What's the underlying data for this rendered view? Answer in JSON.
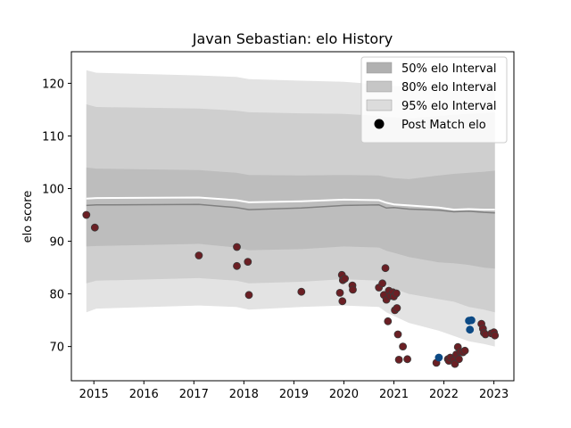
{
  "chart_data": {
    "type": "line",
    "title": "Javan Sebastian: elo History",
    "xlabel": "",
    "ylabel": "elo score",
    "xlim": [
      2014.55,
      2023.4
    ],
    "ylim": [
      63.5,
      126
    ],
    "x_ticks": [
      2015,
      2016,
      2017,
      2018,
      2019,
      2020,
      2021,
      2022,
      2023
    ],
    "y_ticks": [
      70,
      80,
      90,
      100,
      110,
      120
    ],
    "legend_position": "top-right",
    "legend": [
      {
        "label": "50% elo Interval",
        "color": "#b0b0b0",
        "kind": "patch"
      },
      {
        "label": "80% elo Interval",
        "color": "#c6c6c6",
        "kind": "patch"
      },
      {
        "label": "95% elo Interval",
        "color": "#dcdcdc",
        "kind": "patch"
      },
      {
        "label": "Post Match elo",
        "color": "#000000",
        "kind": "marker"
      }
    ],
    "timeline": [
      {
        "x": 2014.85,
        "band95": [
          76.5,
          122.5
        ],
        "band80": [
          82,
          116
        ],
        "band50": [
          89,
          104
        ],
        "mean": 96.8,
        "rating": 98.1
      },
      {
        "x": 2015.05,
        "band95": [
          77.2,
          122.0
        ],
        "band80": [
          82.5,
          115.5
        ],
        "band50": [
          89.1,
          103.8
        ],
        "mean": 96.9,
        "rating": 98.2
      },
      {
        "x": 2017.1,
        "band95": [
          77.8,
          121.5
        ],
        "band80": [
          83.0,
          115.2
        ],
        "band50": [
          89.5,
          103.5
        ],
        "mean": 97.0,
        "rating": 98.3
      },
      {
        "x": 2017.85,
        "band95": [
          77.5,
          121.2
        ],
        "band80": [
          82.5,
          114.8
        ],
        "band50": [
          88.8,
          103.0
        ],
        "mean": 96.4,
        "rating": 97.8
      },
      {
        "x": 2018.1,
        "band95": [
          77.0,
          120.8
        ],
        "band80": [
          82.0,
          114.5
        ],
        "band50": [
          88.3,
          102.6
        ],
        "mean": 96.0,
        "rating": 97.4
      },
      {
        "x": 2019.15,
        "band95": [
          77.5,
          120.5
        ],
        "band80": [
          82.3,
          114.3
        ],
        "band50": [
          88.5,
          102.5
        ],
        "mean": 96.3,
        "rating": 97.6
      },
      {
        "x": 2020.0,
        "band95": [
          77.8,
          120.3
        ],
        "band80": [
          82.8,
          114.2
        ],
        "band50": [
          89.0,
          102.6
        ],
        "mean": 96.8,
        "rating": 97.9
      },
      {
        "x": 2020.7,
        "band95": [
          77.5,
          119.8
        ],
        "band80": [
          82.5,
          113.8
        ],
        "band50": [
          88.8,
          102.5
        ],
        "mean": 96.9,
        "rating": 97.8
      },
      {
        "x": 2020.85,
        "band95": [
          76.5,
          119.6
        ],
        "band80": [
          81.8,
          113.6
        ],
        "band50": [
          88.2,
          102.2
        ],
        "mean": 96.3,
        "rating": 97.3
      },
      {
        "x": 2021.0,
        "band95": [
          75.8,
          119.5
        ],
        "band80": [
          81.0,
          113.5
        ],
        "band50": [
          87.8,
          102.0
        ],
        "mean": 96.4,
        "rating": 97.0
      },
      {
        "x": 2021.3,
        "band95": [
          74.5,
          119.3
        ],
        "band80": [
          80.0,
          113.3
        ],
        "band50": [
          87.0,
          101.8
        ],
        "mean": 96.1,
        "rating": 96.8
      },
      {
        "x": 2021.9,
        "band95": [
          73.0,
          119.5
        ],
        "band80": [
          79.0,
          113.8
        ],
        "band50": [
          86.0,
          102.5
        ],
        "mean": 95.9,
        "rating": 96.4
      },
      {
        "x": 2022.2,
        "band95": [
          72.0,
          119.8
        ],
        "band80": [
          78.5,
          114.0
        ],
        "band50": [
          85.8,
          102.8
        ],
        "mean": 95.6,
        "rating": 96.0
      },
      {
        "x": 2022.5,
        "band95": [
          71.0,
          120.0
        ],
        "band80": [
          77.5,
          114.2
        ],
        "band50": [
          85.5,
          103.0
        ],
        "mean": 95.7,
        "rating": 96.1
      },
      {
        "x": 2022.8,
        "band95": [
          70.5,
          120.3
        ],
        "band80": [
          77.0,
          114.3
        ],
        "band50": [
          85.0,
          103.2
        ],
        "mean": 95.5,
        "rating": 96.0
      },
      {
        "x": 2023.02,
        "band95": [
          70.0,
          120.5
        ],
        "band80": [
          76.5,
          114.5
        ],
        "band50": [
          84.8,
          103.4
        ],
        "mean": 95.4,
        "rating": 96.0
      }
    ],
    "points": [
      {
        "x": 2014.85,
        "y": 95.0,
        "c": "r"
      },
      {
        "x": 2015.02,
        "y": 92.6,
        "c": "r"
      },
      {
        "x": 2017.1,
        "y": 87.3,
        "c": "r"
      },
      {
        "x": 2017.86,
        "y": 88.9,
        "c": "r"
      },
      {
        "x": 2017.86,
        "y": 85.3,
        "c": "r"
      },
      {
        "x": 2018.08,
        "y": 86.1,
        "c": "r"
      },
      {
        "x": 2018.1,
        "y": 79.8,
        "c": "r"
      },
      {
        "x": 2019.15,
        "y": 80.4,
        "c": "r"
      },
      {
        "x": 2019.92,
        "y": 80.2,
        "c": "r"
      },
      {
        "x": 2019.96,
        "y": 83.6,
        "c": "r"
      },
      {
        "x": 2019.98,
        "y": 82.6,
        "c": "r"
      },
      {
        "x": 2020.02,
        "y": 82.9,
        "c": "r"
      },
      {
        "x": 2019.97,
        "y": 78.6,
        "c": "r"
      },
      {
        "x": 2020.17,
        "y": 81.6,
        "c": "r"
      },
      {
        "x": 2020.18,
        "y": 80.8,
        "c": "r"
      },
      {
        "x": 2020.7,
        "y": 81.2,
        "c": "r"
      },
      {
        "x": 2020.77,
        "y": 82.0,
        "c": "r"
      },
      {
        "x": 2020.83,
        "y": 84.9,
        "c": "r"
      },
      {
        "x": 2020.8,
        "y": 79.8,
        "c": "r"
      },
      {
        "x": 2020.85,
        "y": 78.9,
        "c": "r"
      },
      {
        "x": 2020.9,
        "y": 80.6,
        "c": "r"
      },
      {
        "x": 2020.93,
        "y": 79.6,
        "c": "r"
      },
      {
        "x": 2020.98,
        "y": 80.3,
        "c": "r"
      },
      {
        "x": 2021.0,
        "y": 79.5,
        "c": "r"
      },
      {
        "x": 2020.88,
        "y": 74.8,
        "c": "r"
      },
      {
        "x": 2021.02,
        "y": 76.9,
        "c": "r"
      },
      {
        "x": 2021.05,
        "y": 80.1,
        "c": "r"
      },
      {
        "x": 2021.06,
        "y": 77.3,
        "c": "r"
      },
      {
        "x": 2021.08,
        "y": 72.3,
        "c": "r"
      },
      {
        "x": 2021.1,
        "y": 67.5,
        "c": "r"
      },
      {
        "x": 2021.18,
        "y": 70.0,
        "c": "r"
      },
      {
        "x": 2021.27,
        "y": 67.6,
        "c": "r"
      },
      {
        "x": 2021.85,
        "y": 66.9,
        "c": "r"
      },
      {
        "x": 2021.9,
        "y": 67.9,
        "c": "b"
      },
      {
        "x": 2022.08,
        "y": 67.6,
        "c": "r"
      },
      {
        "x": 2022.1,
        "y": 67.3,
        "c": "r"
      },
      {
        "x": 2022.13,
        "y": 67.9,
        "c": "r"
      },
      {
        "x": 2022.2,
        "y": 67.5,
        "c": "r"
      },
      {
        "x": 2022.22,
        "y": 66.7,
        "c": "r"
      },
      {
        "x": 2022.25,
        "y": 68.5,
        "c": "r"
      },
      {
        "x": 2022.28,
        "y": 69.9,
        "c": "r"
      },
      {
        "x": 2022.3,
        "y": 67.6,
        "c": "r"
      },
      {
        "x": 2022.33,
        "y": 69.0,
        "c": "r"
      },
      {
        "x": 2022.38,
        "y": 68.9,
        "c": "r"
      },
      {
        "x": 2022.42,
        "y": 69.2,
        "c": "r"
      },
      {
        "x": 2022.5,
        "y": 74.9,
        "c": "b"
      },
      {
        "x": 2022.55,
        "y": 75.0,
        "c": "b"
      },
      {
        "x": 2022.52,
        "y": 73.2,
        "c": "b"
      },
      {
        "x": 2022.75,
        "y": 74.3,
        "c": "r"
      },
      {
        "x": 2022.78,
        "y": 73.4,
        "c": "r"
      },
      {
        "x": 2022.8,
        "y": 72.6,
        "c": "r"
      },
      {
        "x": 2022.83,
        "y": 72.3,
        "c": "r"
      },
      {
        "x": 2022.95,
        "y": 72.5,
        "c": "r"
      },
      {
        "x": 2023.0,
        "y": 72.7,
        "c": "r"
      },
      {
        "x": 2023.02,
        "y": 72.1,
        "c": "r"
      }
    ],
    "colors": {
      "band95": "#e3e3e3",
      "band80": "#cfcfcf",
      "band50": "#bdbdbd",
      "mean_line": "#808080",
      "rating_line": "#ffffff",
      "point_red": "#6b1f24",
      "point_blue": "#0d4a85",
      "point_edge": "#3a3a3a"
    }
  }
}
